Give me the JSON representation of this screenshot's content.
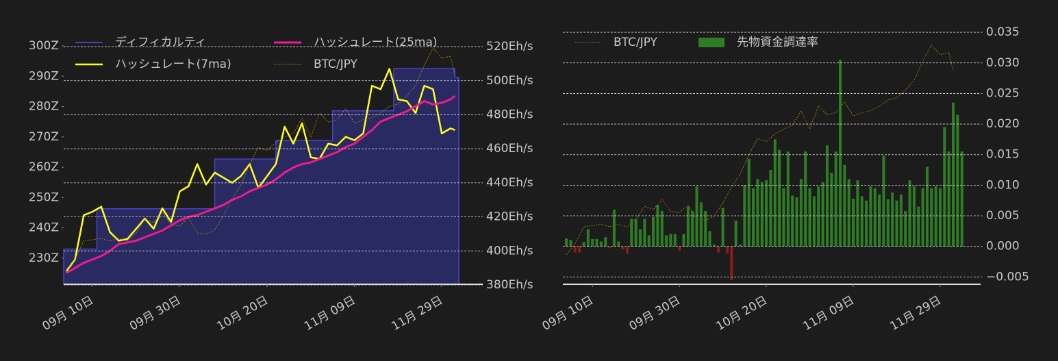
{
  "chart_data": [
    {
      "type": "line",
      "x": [
        -6,
        -4,
        -2,
        0,
        2,
        4,
        6,
        8,
        10,
        12,
        14,
        16,
        18,
        20,
        22,
        24,
        26,
        28,
        30,
        32,
        34,
        36,
        38,
        40,
        42,
        44,
        46,
        48,
        50,
        52,
        54,
        56,
        58,
        60,
        62,
        64,
        66,
        68,
        70,
        72,
        74,
        76,
        78,
        80,
        82,
        83
      ],
      "xlim": [
        -6.6,
        83.9
      ],
      "xticks": [
        {
          "value": 0,
          "label": "09月 10日"
        },
        {
          "value": 20,
          "label": "09月 30日"
        },
        {
          "value": 40,
          "label": "10月 20日"
        },
        {
          "value": 60,
          "label": "11月 09日"
        },
        {
          "value": 80,
          "label": "11月 29日"
        }
      ],
      "ylim": [
        221.4,
        306.1
      ],
      "yticks": [
        {
          "value": 230,
          "label": "230Z"
        },
        {
          "value": 240,
          "label": "240Z"
        },
        {
          "value": 250,
          "label": "250Z"
        },
        {
          "value": 260,
          "label": "260Z"
        },
        {
          "value": 270,
          "label": "270Z"
        },
        {
          "value": 280,
          "label": "280Z"
        },
        {
          "value": 290,
          "label": "290Z"
        },
        {
          "value": 300,
          "label": "300Z"
        }
      ],
      "y2lim": [
        380.4,
        531.3
      ],
      "y2ticks": [
        {
          "value": 380,
          "label": "380Eh/s"
        },
        {
          "value": 400,
          "label": "400Eh/s"
        },
        {
          "value": 420,
          "label": "420Eh/s"
        },
        {
          "value": 440,
          "label": "440Eh/s"
        },
        {
          "value": 460,
          "label": "460Eh/s"
        },
        {
          "value": 480,
          "label": "480Eh/s"
        },
        {
          "value": 500,
          "label": "500Eh/s"
        },
        {
          "value": 520,
          "label": "520Eh/s"
        }
      ],
      "y3lim": [
        7790000,
        15630000
      ],
      "grid": true,
      "series": [
        {
          "name": "ディフィカルティ",
          "type": "area-step",
          "color": "#4444cc",
          "fill": "#2a2a62",
          "x": [
            -6.6,
            1,
            28,
            42,
            55,
            69,
            83
          ],
          "values": [
            233,
            246.3,
            262.7,
            268.8,
            278.6,
            292.5,
            289.6
          ]
        },
        {
          "name": "ハッシュレート(7ma)",
          "type": "line",
          "color": "#ffff1a",
          "width": 2.5,
          "axis": "y2",
          "values": [
            388,
            395,
            421,
            423,
            426,
            411,
            406,
            407,
            413,
            419,
            413,
            425,
            417,
            435,
            438,
            451,
            439,
            446,
            443,
            440,
            444,
            451,
            437,
            444,
            451,
            473,
            463,
            475,
            455,
            454,
            463,
            462,
            467,
            465,
            469,
            497,
            495,
            507,
            489,
            488,
            481,
            497,
            495,
            469,
            472,
            471
          ]
        },
        {
          "name": "ハッシュレート(25ma)",
          "type": "line",
          "color": "#ee1c8c",
          "width": 3,
          "axis": "y2",
          "values": [
            387,
            390,
            393,
            395,
            397,
            400,
            404,
            405,
            406,
            408,
            410,
            412,
            415,
            418,
            420,
            421,
            423,
            425,
            427,
            430,
            432,
            435,
            437,
            439,
            442,
            446,
            449,
            451,
            452,
            454,
            456,
            458,
            461,
            463,
            467,
            471,
            476,
            478,
            480,
            482,
            485,
            488,
            486,
            487,
            489,
            491
          ]
        },
        {
          "name": "BTC/JPY",
          "type": "line",
          "color": "#b8860b",
          "width": 1,
          "dash": true,
          "axis": "y3",
          "values": [
            8210000,
            8560000,
            9110000,
            9150000,
            9190000,
            9110000,
            9190000,
            9110000,
            9360000,
            9780000,
            9670000,
            9990000,
            9610000,
            9570000,
            9820000,
            9360000,
            9320000,
            9460000,
            9880000,
            10400000,
            10820000,
            11450000,
            11970000,
            11870000,
            12120000,
            12280000,
            12390000,
            12870000,
            12280000,
            13020000,
            12740000,
            12810000,
            13160000,
            12700000,
            12810000,
            12870000,
            13020000,
            13220000,
            13290000,
            13540000,
            13850000,
            14480000,
            15000000,
            14690000,
            14750000,
            14160000
          ]
        }
      ]
    },
    {
      "type": "bar",
      "x": [
        -6,
        -5,
        -4,
        -3,
        -2,
        -1,
        0,
        1,
        2,
        3,
        4,
        5,
        6,
        7,
        8,
        9,
        10,
        11,
        12,
        13,
        14,
        15,
        16,
        17,
        18,
        19,
        20,
        21,
        22,
        23,
        24,
        25,
        26,
        27,
        28,
        29,
        30,
        31,
        32,
        33,
        34,
        35,
        36,
        37,
        38,
        39,
        40,
        41,
        42,
        43,
        44,
        45,
        46,
        47,
        48,
        49,
        50,
        51,
        52,
        53,
        54,
        55,
        56,
        57,
        58,
        59,
        60,
        61,
        62,
        63,
        64,
        65,
        66,
        67,
        68,
        69,
        70,
        71,
        72,
        73,
        74,
        75,
        76,
        77,
        78,
        79,
        80,
        81,
        82,
        83,
        84,
        85
      ],
      "xlim": [
        -6.8,
        89.3
      ],
      "xticks": [
        {
          "value": 0,
          "label": "09月 10日"
        },
        {
          "value": 20,
          "label": "09月 30日"
        },
        {
          "value": 40,
          "label": "10月 20日"
        },
        {
          "value": 60,
          "label": "11月 09日"
        },
        {
          "value": 80,
          "label": "11月 29日"
        }
      ],
      "ylim": [
        -0.0062,
        0.0358
      ],
      "yticks": [
        {
          "value": -0.005,
          "label": "−0.005"
        },
        {
          "value": 0,
          "label": "0.000"
        },
        0.005,
        {
          "value": 0.01,
          "label": "0.010"
        },
        0.015,
        {
          "value": 0.02,
          "label": "0.020"
        },
        0.025,
        {
          "value": 0.03,
          "label": "0.030"
        },
        0.035
      ],
      "y2lim": [
        7250000,
        15570000
      ],
      "grid": true,
      "series": [
        {
          "name": "BTC/JPY",
          "type": "line",
          "color": "#b8860b",
          "width": 1,
          "dash": true,
          "axis": "y2",
          "x": [
            -6,
            -4,
            -2,
            0,
            2,
            4,
            6,
            8,
            10,
            12,
            14,
            16,
            18,
            20,
            22,
            24,
            26,
            28,
            30,
            32,
            34,
            36,
            38,
            40,
            42,
            44,
            46,
            48,
            50,
            52,
            54,
            56,
            58,
            60,
            62,
            64,
            66,
            68,
            70,
            72,
            74,
            76,
            78,
            80,
            82,
            83
          ],
          "values": [
            8210000,
            8560000,
            9110000,
            9150000,
            9190000,
            9110000,
            9190000,
            9110000,
            9360000,
            9780000,
            9670000,
            9990000,
            9610000,
            9570000,
            9820000,
            9360000,
            9320000,
            9460000,
            9880000,
            10400000,
            10820000,
            11450000,
            11970000,
            11870000,
            12120000,
            12280000,
            12390000,
            12870000,
            12280000,
            13020000,
            12740000,
            12810000,
            13160000,
            12700000,
            12810000,
            12870000,
            13020000,
            13220000,
            13290000,
            13540000,
            13850000,
            14480000,
            15000000,
            14690000,
            14750000,
            14160000
          ]
        },
        {
          "name": "先物資金調達率",
          "type": "bar",
          "color": "#2e7d24",
          "negative_color": "#8b1a1a",
          "values": [
            0.0013,
            0.001,
            -0.001,
            -0.001,
            0.0007,
            0.0028,
            0.0012,
            0.0012,
            0.0008,
            0.0015,
            -0.0003,
            0.006,
            0.0008,
            -0.0005,
            -0.0012,
            0.0045,
            0.0045,
            0.0028,
            0.0045,
            0.0018,
            0.0048,
            0.0068,
            0.0058,
            0.0018,
            0.002,
            0.002,
            -0.0007,
            0.002,
            0.0065,
            0.0058,
            0.0098,
            0.0072,
            0.0058,
            0.0025,
            0.0003,
            -0.001,
            0.0063,
            -0.0012,
            -0.0055,
            0.0042,
            0.0003,
            0.01,
            0.0143,
            0.0095,
            0.011,
            0.0105,
            0.0108,
            0.0125,
            0.0175,
            0.0158,
            0.0095,
            0.0155,
            0.0083,
            0.008,
            0.011,
            0.0155,
            0.0095,
            0.0082,
            0.0098,
            0.0105,
            0.0165,
            0.012,
            0.0155,
            0.0305,
            0.0133,
            0.011,
            0.0078,
            0.0108,
            0.0082,
            0.0075,
            0.0098,
            0.0095,
            0.0085,
            0.0148,
            0.0077,
            0.0088,
            0.0075,
            0.0085,
            0.0058,
            0.0108,
            0.0098,
            0.0065,
            0.0095,
            0.013,
            0.0095,
            0.0098,
            0.0095,
            0.0195,
            0.0155,
            0.0235,
            0.0215,
            0.0155
          ]
        }
      ]
    }
  ]
}
